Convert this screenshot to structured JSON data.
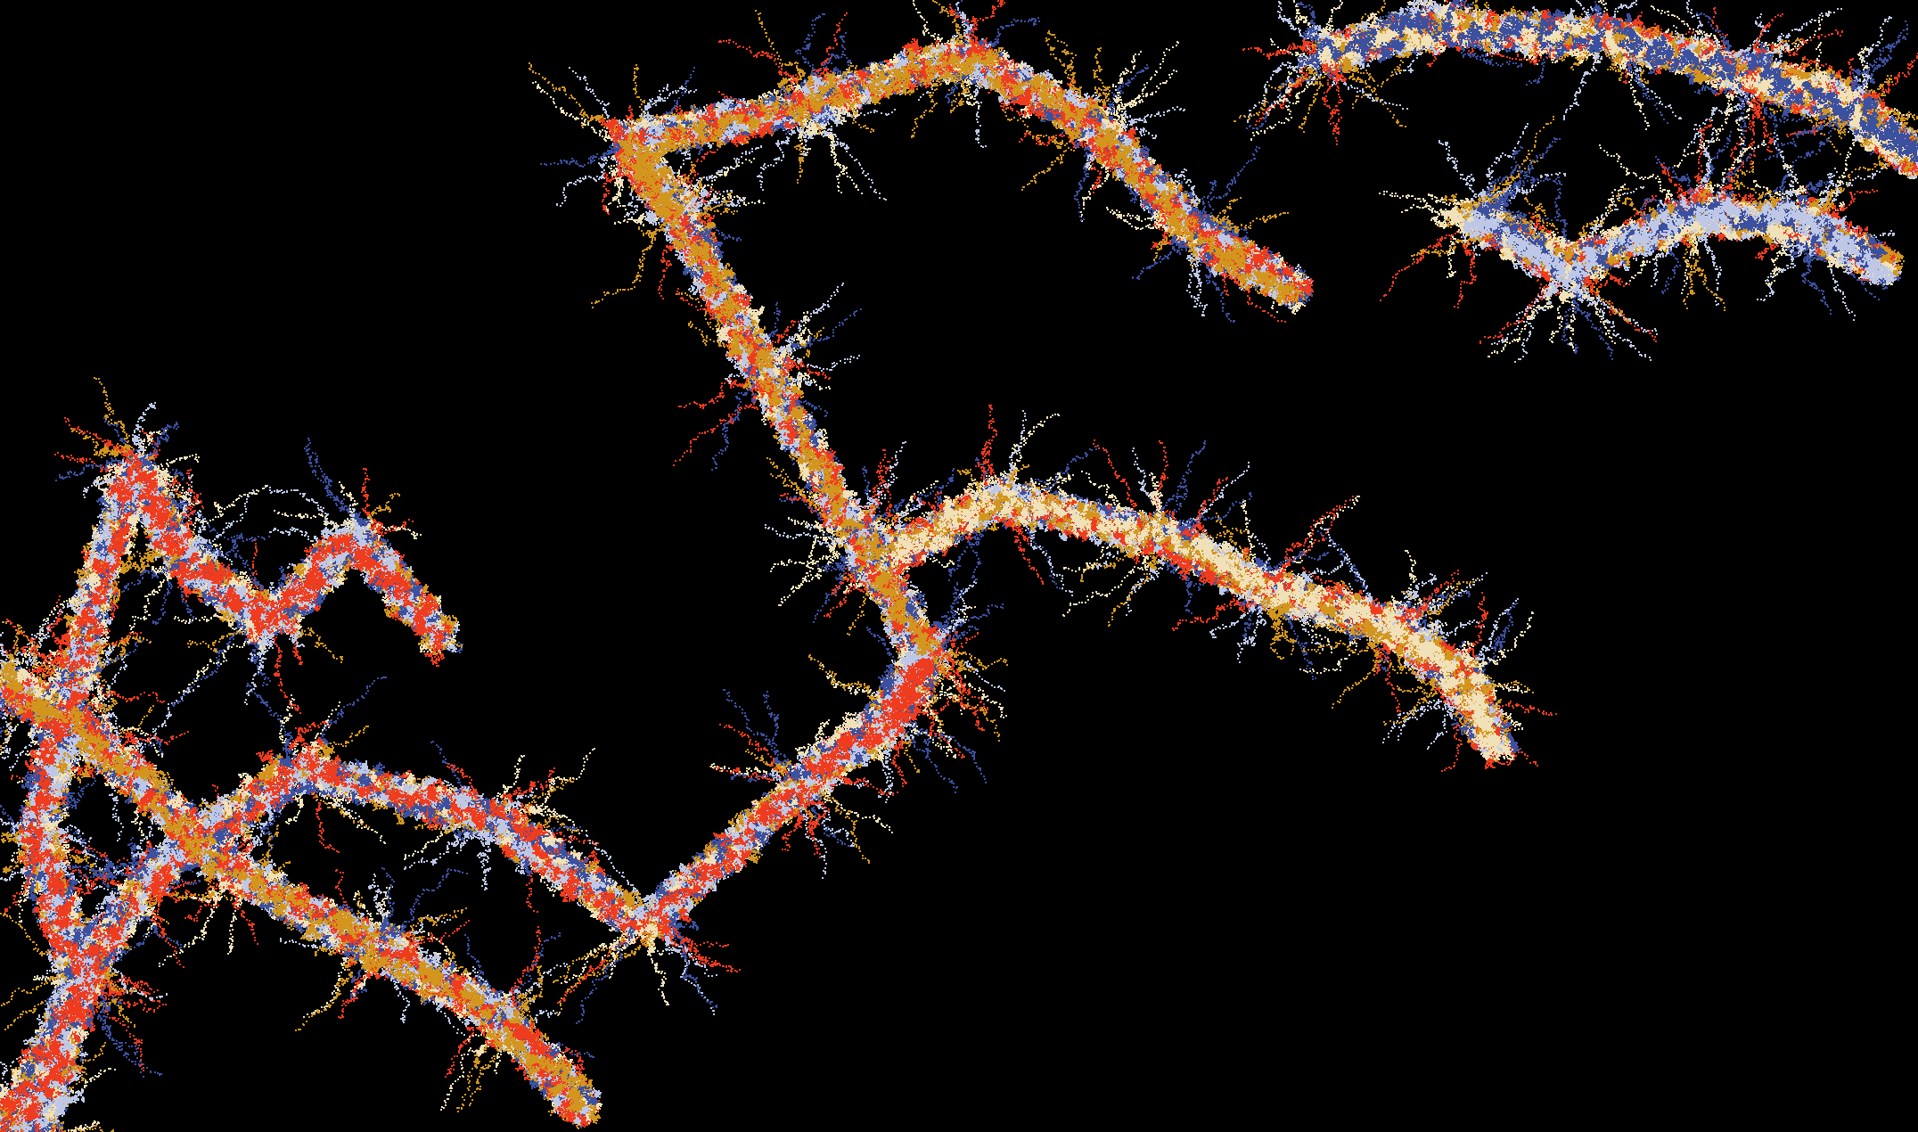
{
  "artwork": {
    "kind": "random-walk-fractal",
    "background_color": "#000000",
    "palette": [
      {
        "name": "vermilion",
        "hex": "#F03C1E"
      },
      {
        "name": "ochre",
        "hex": "#D2961E"
      },
      {
        "name": "cream",
        "hex": "#F0E1B9"
      },
      {
        "name": "royal-blue",
        "hex": "#3C50A0"
      },
      {
        "name": "periwinkle",
        "hex": "#BEC8E6"
      }
    ]
  }
}
